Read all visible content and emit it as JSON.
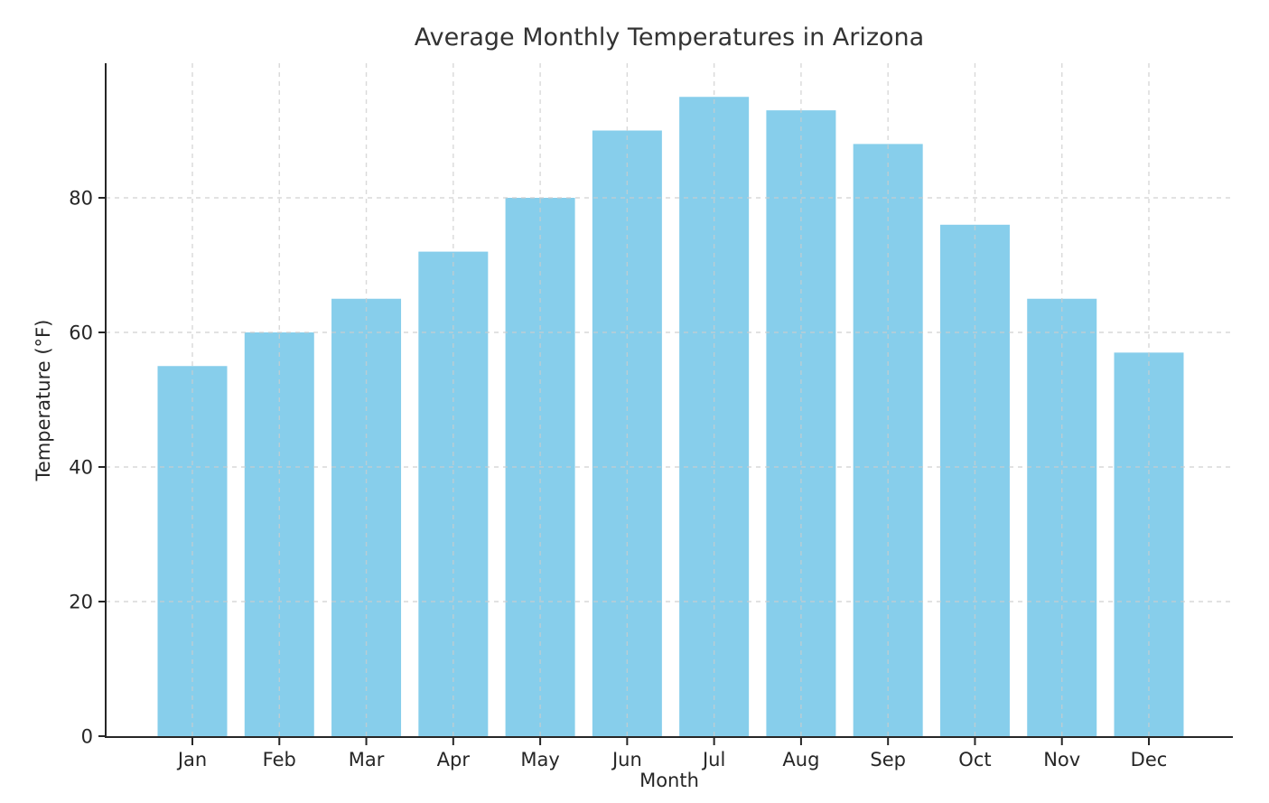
{
  "chart_data": {
    "type": "bar",
    "title": "Average Monthly Temperatures in Arizona",
    "xlabel": "Month",
    "ylabel": "Temperature (°F)",
    "categories": [
      "Jan",
      "Feb",
      "Mar",
      "Apr",
      "May",
      "Jun",
      "Jul",
      "Aug",
      "Sep",
      "Oct",
      "Nov",
      "Dec"
    ],
    "values": [
      55,
      60,
      65,
      72,
      80,
      90,
      95,
      93,
      88,
      76,
      65,
      57
    ],
    "yticks": [
      0,
      20,
      40,
      60,
      80
    ],
    "ylim": [
      0,
      100
    ],
    "bar_color": "#87CEEB",
    "grid": {
      "visible": true,
      "style": "dashed",
      "color": "#cccccc",
      "both_directions": true
    },
    "axis_color": "#262626",
    "text_color": "#262626",
    "legend_position": "none"
  }
}
